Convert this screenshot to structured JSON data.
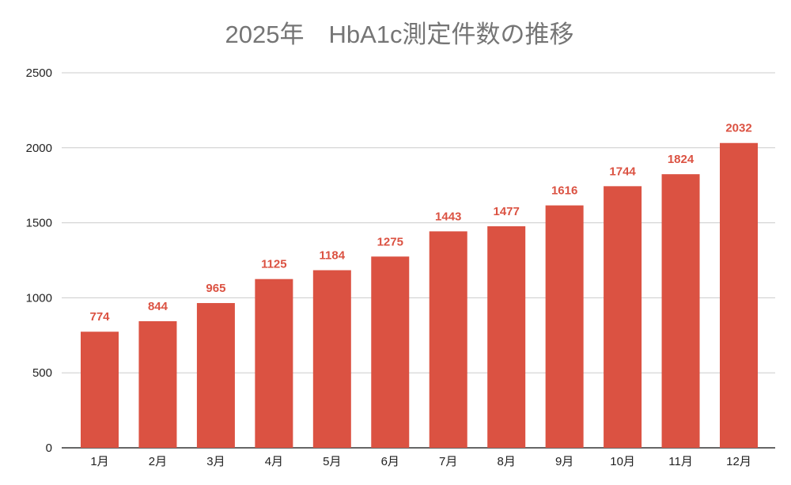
{
  "chart_data": {
    "type": "bar",
    "title": "2025年　HbA1c測定件数の推移",
    "xlabel": "",
    "ylabel": "",
    "categories": [
      "1月",
      "2月",
      "3月",
      "4月",
      "5月",
      "6月",
      "7月",
      "8月",
      "9月",
      "10月",
      "11月",
      "12月"
    ],
    "values": [
      774,
      844,
      965,
      1125,
      1184,
      1275,
      1443,
      1477,
      1616,
      1744,
      1824,
      2032
    ],
    "ylim": [
      0,
      2500
    ],
    "yticks": [
      0,
      500,
      1000,
      1500,
      2000,
      2500
    ],
    "grid": true,
    "data_labels": true,
    "colors": {
      "bar": "#DB5242",
      "label": "#DB5242",
      "grid": "#CCCCCC",
      "axis": "#333333"
    }
  }
}
